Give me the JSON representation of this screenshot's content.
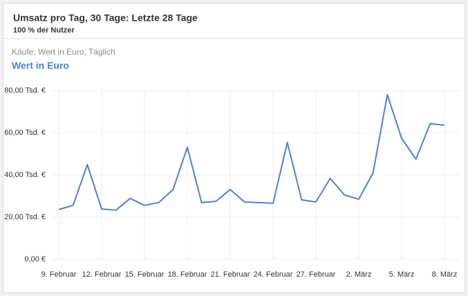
{
  "chart_data": {
    "type": "line",
    "title": "Umsatz pro Tag, 30 Tage: Letzte 28 Tage",
    "subtitle": "100 % der Nutzer",
    "metric_label": "Käufe: Wert in Euro, Täglich",
    "categories": [
      "9. Februar",
      null,
      null,
      "12. Februar",
      null,
      null,
      "15. Februar",
      null,
      null,
      "18. Februar",
      null,
      null,
      "21. Februar",
      null,
      null,
      "24. Februar",
      null,
      null,
      "27. Februar",
      null,
      null,
      "2. März",
      null,
      null,
      "5. März",
      null,
      null,
      "8. März"
    ],
    "series": [
      {
        "name": "Wert in Euro",
        "color": "#4a7fe0",
        "values": [
          23.6,
          25.6,
          44.9,
          23.9,
          23.3,
          28.9,
          25.6,
          26.9,
          33.1,
          53.1,
          26.9,
          27.5,
          33.1,
          27.2,
          26.9,
          26.6,
          55.4,
          28.2,
          27.2,
          38.4,
          30.5,
          28.5,
          41.0,
          78.0,
          57.4,
          47.5,
          64.3,
          63.6
        ]
      }
    ],
    "ylim": [
      0,
      80
    ],
    "yticks": [
      {
        "value": 0,
        "label": "0,00 €"
      },
      {
        "value": 20,
        "label": "20,00 Tsd. €"
      },
      {
        "value": 40,
        "label": "40,00 Tsd. €"
      },
      {
        "value": 60,
        "label": "60,00 Tsd. €"
      },
      {
        "value": 80,
        "label": "80,00 Tsd. €"
      }
    ],
    "grid": true
  }
}
